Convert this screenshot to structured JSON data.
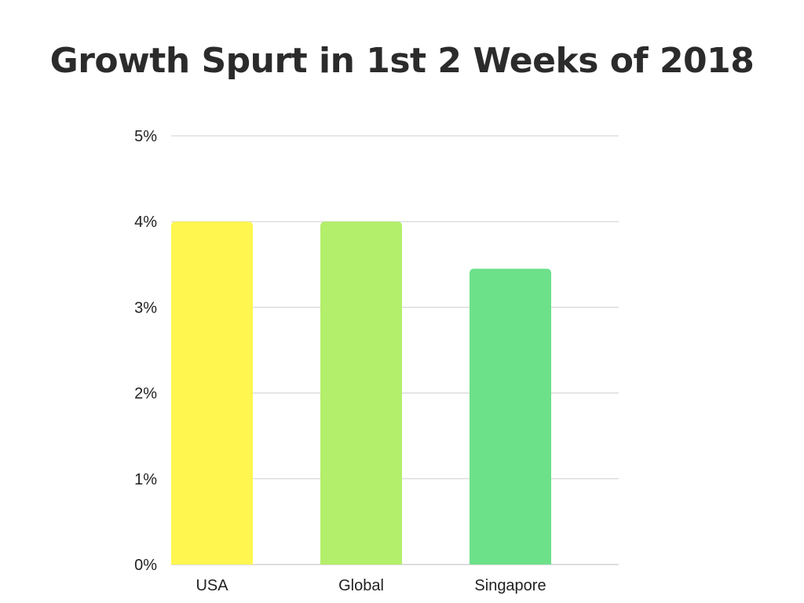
{
  "chart_data": {
    "type": "bar",
    "title": "Growth Spurt in 1st 2 Weeks of 2018",
    "categories": [
      "USA",
      "Global",
      "Singapore"
    ],
    "values": [
      4.0,
      4.0,
      3.45
    ],
    "ylim": [
      0,
      5
    ],
    "yticks": [
      "0%",
      "1%",
      "2%",
      "3%",
      "4%",
      "5%"
    ],
    "ytick_values": [
      0,
      1,
      2,
      3,
      4,
      5
    ],
    "colors": [
      "#fff64f",
      "#b3ef6a",
      "#6de08a"
    ],
    "grid": true,
    "legend": "none"
  }
}
